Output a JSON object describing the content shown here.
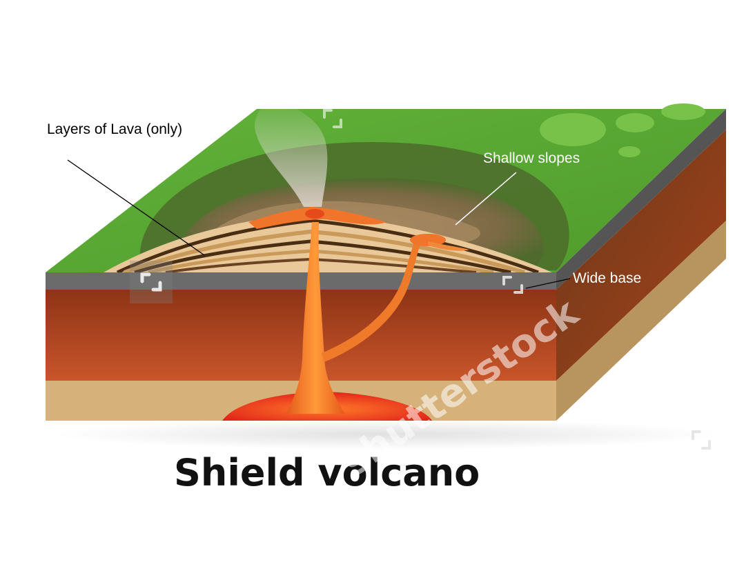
{
  "diagram": {
    "title": "Shield volcano",
    "labels": {
      "layers": "Layers of Lava (only)",
      "slopes": "Shallow slopes",
      "base": "Wide base"
    }
  },
  "watermark": {
    "text": "shutterstock",
    "corner_text": "shut"
  },
  "colors": {
    "grass": "#5aa532",
    "grass_dark": "#3f7f24",
    "rock_top": "#a8411b",
    "rock_bottom": "#c7582a",
    "sand": "#d2b07a",
    "ground_line": "#666666",
    "lava": "#f06a1c",
    "magma": "#e8321c",
    "ash": "#8a6a4a"
  }
}
